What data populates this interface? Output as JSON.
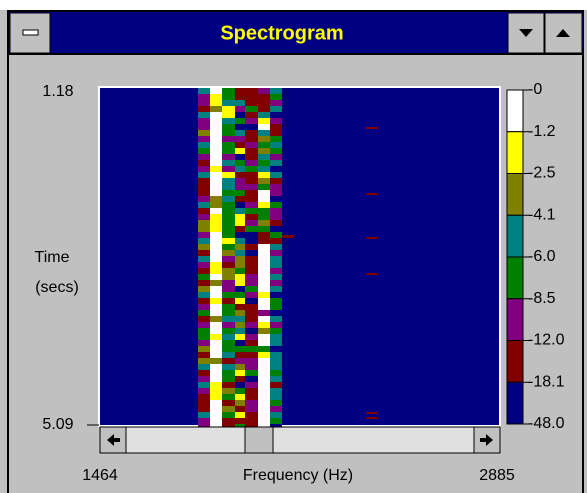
{
  "window": {
    "title": "Spectrogram"
  },
  "plot": {
    "y_top": "1.18",
    "y_bottom": "5.09",
    "y_label_line1": "Time",
    "y_label_line2": "(secs)",
    "x_left": "1464",
    "x_right": "2885",
    "x_label": "Frequency (Hz)"
  },
  "colorbar": {
    "labels": [
      "-0",
      "-1.2",
      "-2.5",
      "-4.1",
      "-6.0",
      "-8.5",
      "-12.0",
      "-18.1",
      "-48.0"
    ],
    "colors": [
      "#ffffff",
      "#ffff00",
      "#808000",
      "#008080",
      "#008000",
      "#800080",
      "#800000",
      "#000080"
    ]
  }
}
